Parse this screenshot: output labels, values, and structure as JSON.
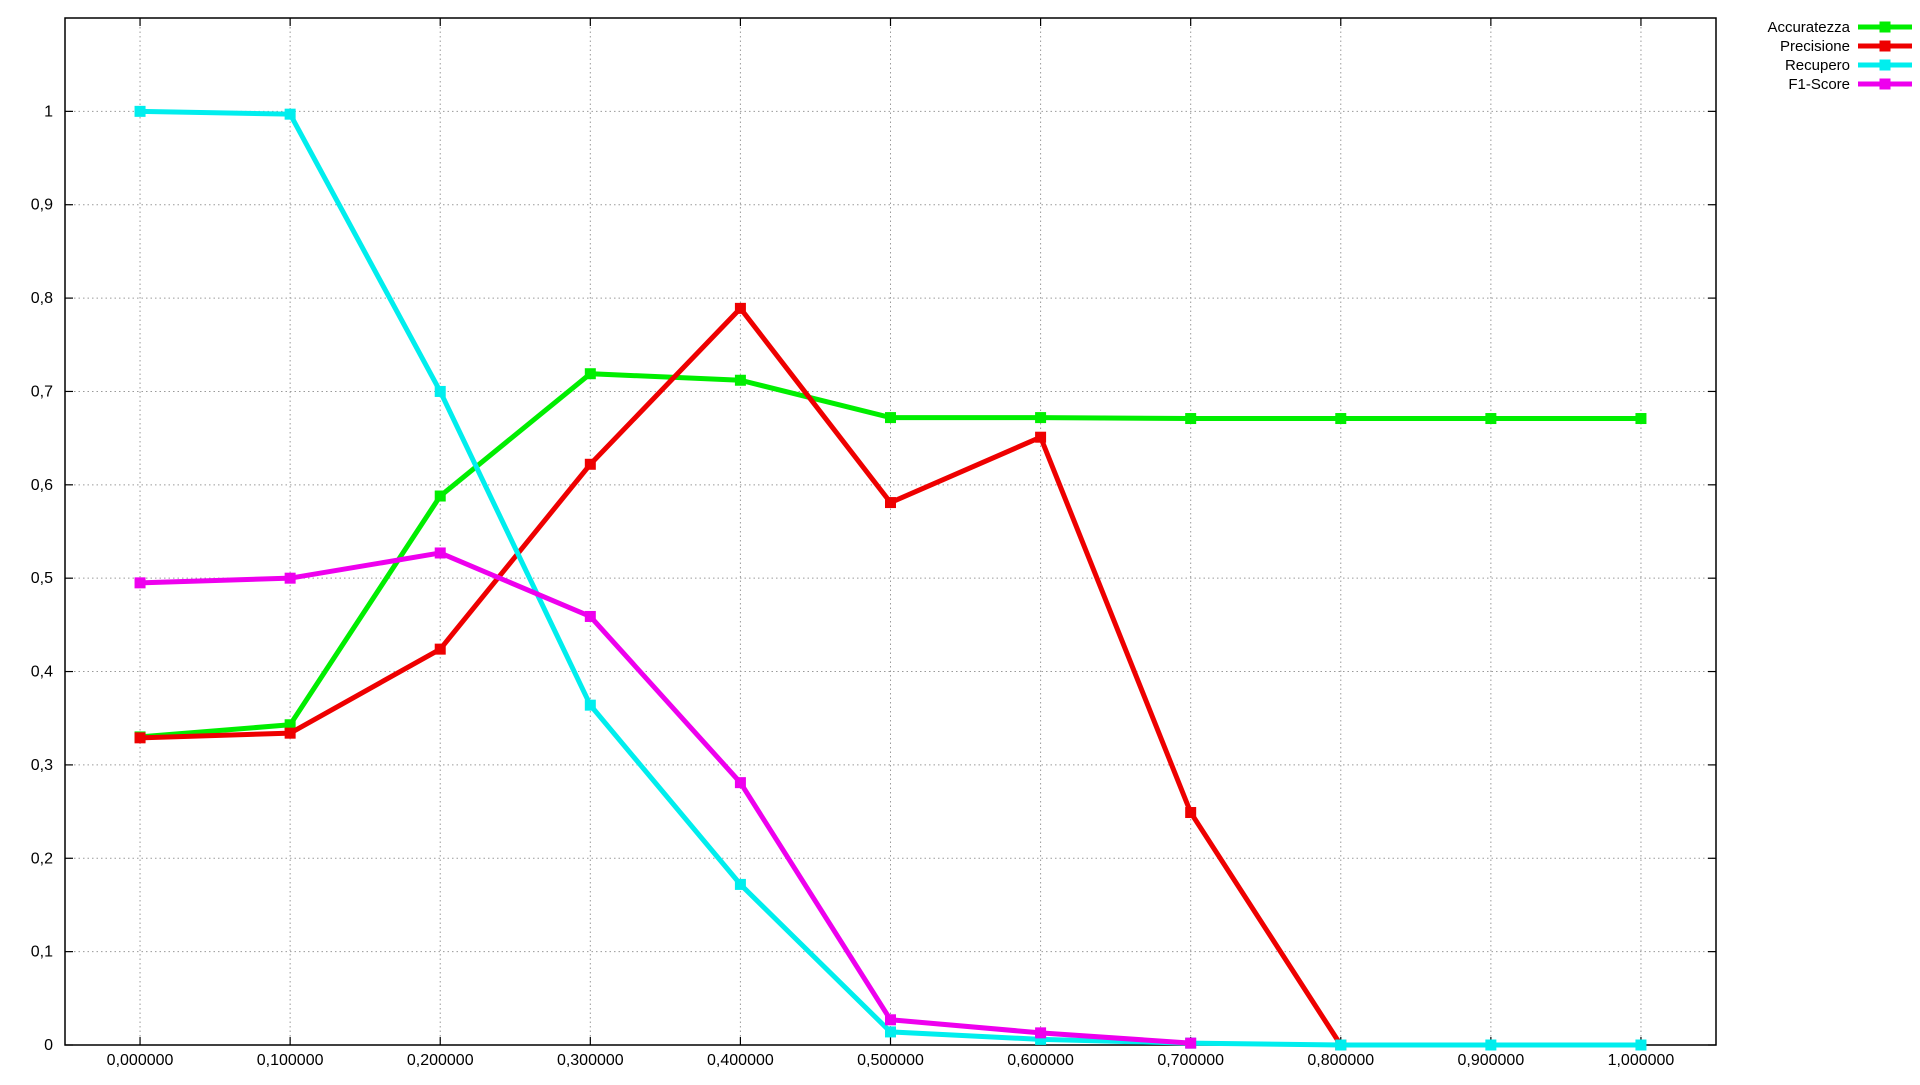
{
  "chart_data": {
    "type": "line",
    "title": "",
    "xlabel": "",
    "ylabel": "",
    "x": [
      0.0,
      0.1,
      0.2,
      0.3,
      0.4,
      0.5,
      0.6,
      0.7,
      0.8,
      0.9,
      1.0
    ],
    "x_tick_labels": [
      "0,000000",
      "0,100000",
      "0,200000",
      "0,300000",
      "0,400000",
      "0,500000",
      "0,600000",
      "0,700000",
      "0,800000",
      "0,900000",
      "1,000000"
    ],
    "xlim": [
      -0.05,
      1.05
    ],
    "ylim": [
      0,
      1.1
    ],
    "y_ticks": [
      0,
      0.1,
      0.2,
      0.3,
      0.4,
      0.5,
      0.6,
      0.7,
      0.8,
      0.9,
      1
    ],
    "y_tick_labels": [
      "0",
      "0,1",
      "0,2",
      "0,3",
      "0,4",
      "0,5",
      "0,6",
      "0,7",
      "0,8",
      "0,9",
      "1"
    ],
    "grid": true,
    "legend_position": "top-right",
    "series": [
      {
        "name": "Accuratezza",
        "color": "#00ee00",
        "values": [
          0.33,
          0.343,
          0.588,
          0.719,
          0.712,
          0.672,
          0.672,
          0.671,
          0.671,
          0.671,
          0.671
        ]
      },
      {
        "name": "Precisione",
        "color": "#ee0000",
        "values": [
          0.329,
          0.334,
          0.424,
          0.622,
          0.789,
          0.581,
          0.651,
          0.249,
          0.0,
          null,
          null
        ]
      },
      {
        "name": "Recupero",
        "color": "#00eeee",
        "values": [
          1.0,
          0.997,
          0.7,
          0.364,
          0.172,
          0.014,
          0.006,
          0.002,
          0.0,
          0.0,
          0.0
        ]
      },
      {
        "name": "F1-Score",
        "color": "#ee00ee",
        "values": [
          0.495,
          0.5,
          0.527,
          0.459,
          0.281,
          0.027,
          0.013,
          0.002,
          null,
          null,
          null
        ]
      }
    ]
  }
}
